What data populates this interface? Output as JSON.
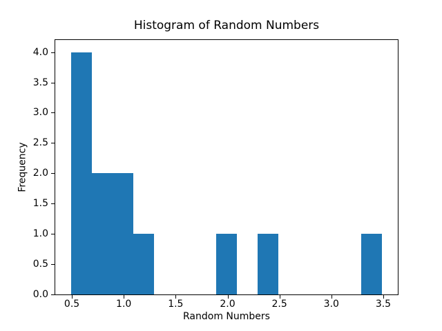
{
  "chart_data": {
    "type": "bar",
    "subtype": "histogram",
    "title": "Histogram of Random Numbers",
    "xlabel": "Random Numbers",
    "ylabel": "Frequency",
    "bin_edges": [
      0.49,
      0.69,
      0.89,
      1.09,
      1.29,
      1.49,
      1.69,
      1.89,
      2.09,
      2.29,
      2.49,
      2.69,
      2.89,
      3.09,
      3.29,
      3.49
    ],
    "counts": [
      4,
      2,
      2,
      1,
      0,
      0,
      0,
      1,
      0,
      1,
      0,
      0,
      0,
      0,
      1
    ],
    "xlim": [
      0.34,
      3.64
    ],
    "ylim": [
      0,
      4.2
    ],
    "xticks": [
      0.5,
      1.0,
      1.5,
      2.0,
      2.5,
      3.0,
      3.5
    ],
    "yticks": [
      0.0,
      0.5,
      1.0,
      1.5,
      2.0,
      2.5,
      3.0,
      3.5,
      4.0
    ],
    "bar_color": "#1f77b4",
    "axis_color": "#000000",
    "background_color": "#ffffff",
    "grid": false,
    "legend": null
  }
}
